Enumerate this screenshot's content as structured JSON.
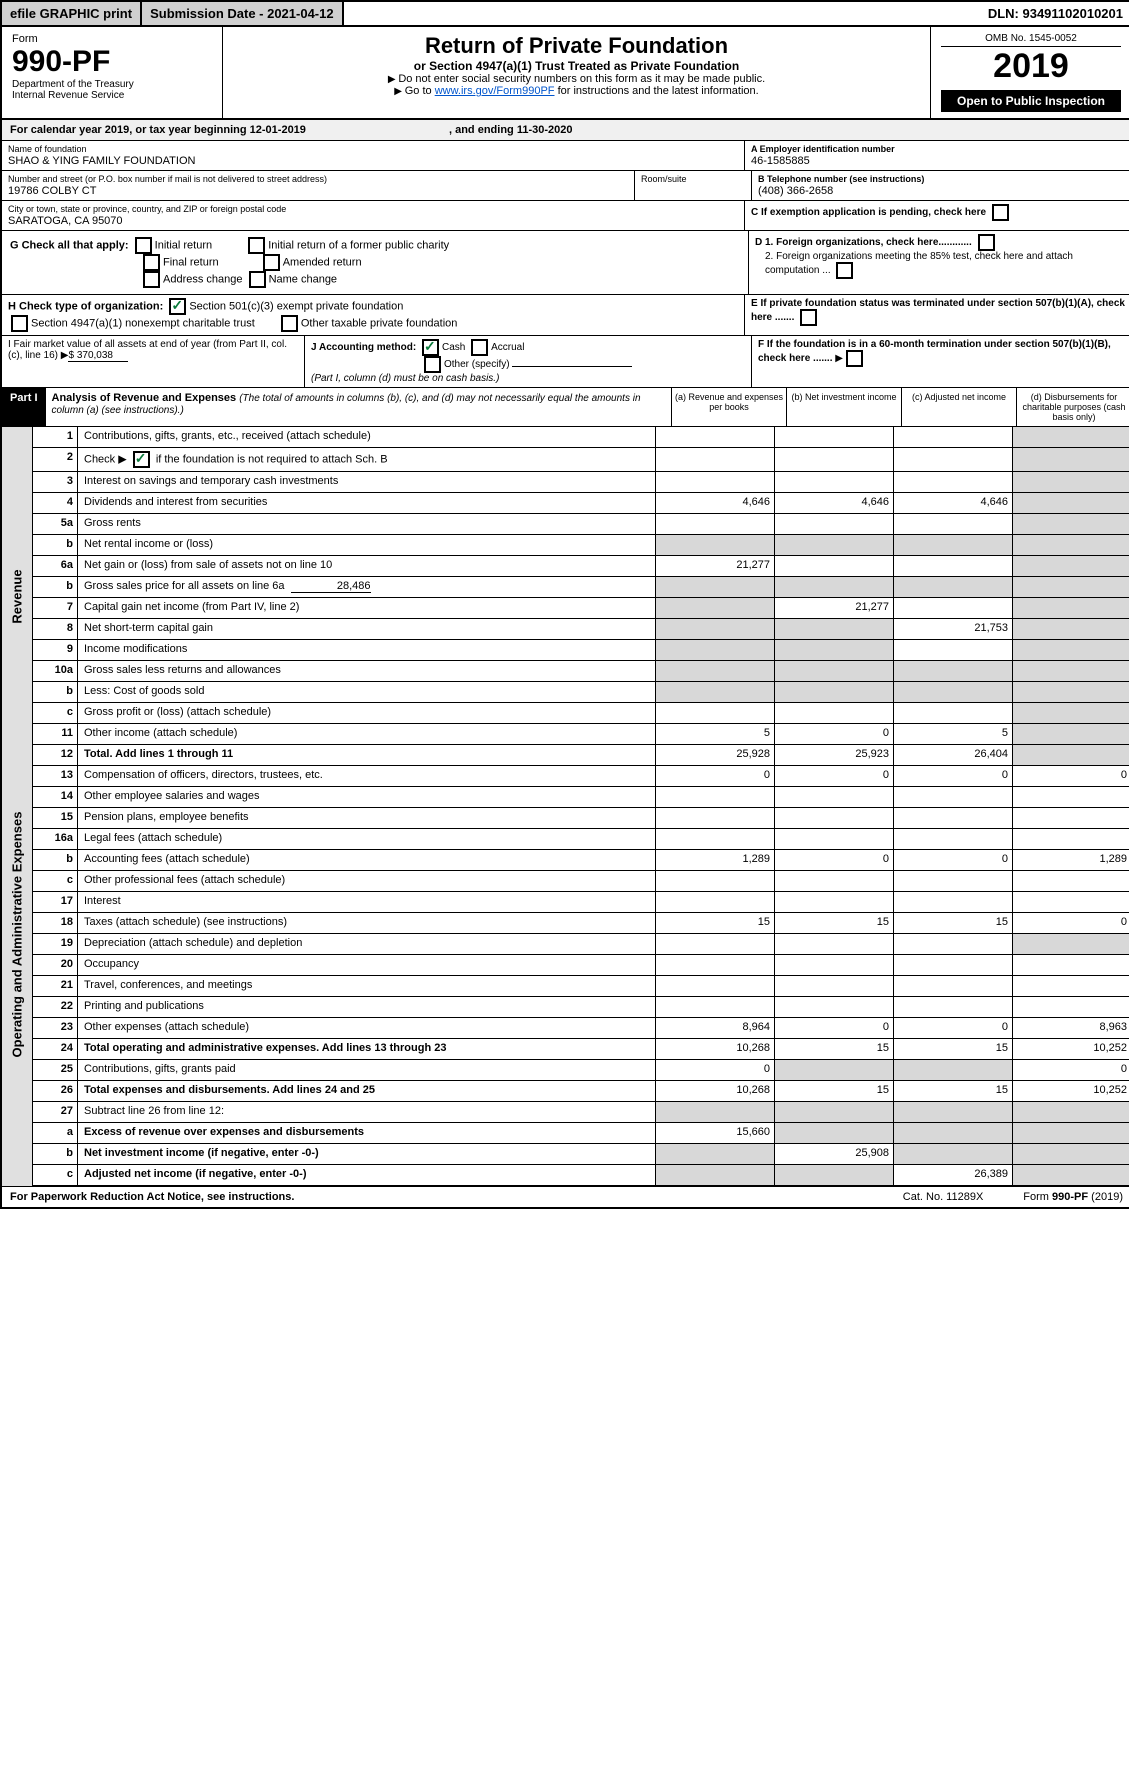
{
  "topbar": {
    "efile": "efile GRAPHIC print",
    "subdate_lbl": "Submission Date - 2021-04-12",
    "dln": "DLN: 93491102010201"
  },
  "header": {
    "form_word": "Form",
    "form_no": "990-PF",
    "dept": "Department of the Treasury",
    "irs": "Internal Revenue Service",
    "title": "Return of Private Foundation",
    "subtitle": "or Section 4947(a)(1) Trust Treated as Private Foundation",
    "instr1": "Do not enter social security numbers on this form as it may be made public.",
    "instr2_pre": "Go to ",
    "instr2_link": "www.irs.gov/Form990PF",
    "instr2_post": " for instructions and the latest information.",
    "omb": "OMB No. 1545-0052",
    "year": "2019",
    "inspect": "Open to Public Inspection"
  },
  "calyear": {
    "text": "For calendar year 2019, or tax year beginning 12-01-2019",
    "mid": ", and ending 11-30-2020"
  },
  "foundation": {
    "name_lbl": "Name of foundation",
    "name": "SHAO & YING FAMILY FOUNDATION",
    "addr_lbl": "Number and street (or P.O. box number if mail is not delivered to street address)",
    "addr": "19786 COLBY CT",
    "room_lbl": "Room/suite",
    "room": "",
    "city_lbl": "City or town, state or province, country, and ZIP or foreign postal code",
    "city": "SARATOGA, CA  95070",
    "ein_lbl": "A Employer identification number",
    "ein": "46-1585885",
    "tel_lbl": "B Telephone number (see instructions)",
    "tel": "(408) 366-2658",
    "c_lbl": "C If exemption application is pending, check here",
    "d1_lbl": "D 1. Foreign organizations, check here............",
    "d2_lbl": "2. Foreign organizations meeting the 85% test, check here and attach computation ...",
    "e_lbl": "E If private foundation status was terminated under section 507(b)(1)(A), check here .......",
    "f_lbl": "F If the foundation is in a 60-month termination under section 507(b)(1)(B), check here ......."
  },
  "checks": {
    "g_lbl": "G Check all that apply:",
    "init": "Initial return",
    "initfpc": "Initial return of a former public charity",
    "final": "Final return",
    "amend": "Amended return",
    "addrchg": "Address change",
    "namechg": "Name change",
    "h_lbl": "H Check type of organization:",
    "h1": "Section 501(c)(3) exempt private foundation",
    "h2": "Section 4947(a)(1) nonexempt charitable trust",
    "h3": "Other taxable private foundation",
    "i_lbl": "I Fair market value of all assets at end of year (from Part II, col. (c), line 16)",
    "i_val": "$  370,038",
    "j_lbl": "J Accounting method:",
    "cash": "Cash",
    "accrual": "Accrual",
    "other": "Other (specify)",
    "j_note": "(Part I, column (d) must be on cash basis.)"
  },
  "part1": {
    "label": "Part I",
    "title": "Analysis of Revenue and Expenses",
    "title_note": "(The total of amounts in columns (b), (c), and (d) may not necessarily equal the amounts in column (a) (see instructions).)",
    "col_a": "(a)   Revenue and expenses per books",
    "col_b": "(b)  Net investment income",
    "col_c": "(c)  Adjusted net income",
    "col_d": "(d)  Disbursements for charitable purposes (cash basis only)"
  },
  "sections": {
    "rev": "Revenue",
    "exp": "Operating and Administrative Expenses"
  },
  "lines": {
    "1": {
      "d": "Contributions, gifts, grants, etc., received (attach schedule)"
    },
    "2": {
      "d": "Check ▶        if the foundation is not required to attach Sch. B"
    },
    "3": {
      "d": "Interest on savings and temporary cash investments"
    },
    "4": {
      "d": "Dividends and interest from securities",
      "a": "4,646",
      "b": "4,646",
      "c": "4,646"
    },
    "5a": {
      "d": "Gross rents"
    },
    "5b": {
      "d": "Net rental income or (loss)"
    },
    "6a": {
      "d": "Net gain or (loss) from sale of assets not on line 10",
      "a": "21,277"
    },
    "6b": {
      "d": "Gross sales price for all assets on line 6a",
      "v": "28,486"
    },
    "7": {
      "d": "Capital gain net income (from Part IV, line 2)",
      "b": "21,277"
    },
    "8": {
      "d": "Net short-term capital gain",
      "c": "21,753"
    },
    "9": {
      "d": "Income modifications"
    },
    "10a": {
      "d": "Gross sales less returns and allowances"
    },
    "10b": {
      "d": "Less: Cost of goods sold"
    },
    "10c": {
      "d": "Gross profit or (loss) (attach schedule)"
    },
    "11": {
      "d": "Other income (attach schedule)",
      "a": "5",
      "b": "0",
      "c": "5"
    },
    "12": {
      "d": "Total. Add lines 1 through 11",
      "a": "25,928",
      "b": "25,923",
      "c": "26,404"
    },
    "13": {
      "d": "Compensation of officers, directors, trustees, etc.",
      "a": "0",
      "b": "0",
      "c": "0",
      "dd": "0"
    },
    "14": {
      "d": "Other employee salaries and wages"
    },
    "15": {
      "d": "Pension plans, employee benefits"
    },
    "16a": {
      "d": "Legal fees (attach schedule)"
    },
    "16b": {
      "d": "Accounting fees (attach schedule)",
      "a": "1,289",
      "b": "0",
      "c": "0",
      "dd": "1,289"
    },
    "16c": {
      "d": "Other professional fees (attach schedule)"
    },
    "17": {
      "d": "Interest"
    },
    "18": {
      "d": "Taxes (attach schedule) (see instructions)",
      "a": "15",
      "b": "15",
      "c": "15",
      "dd": "0"
    },
    "19": {
      "d": "Depreciation (attach schedule) and depletion"
    },
    "20": {
      "d": "Occupancy"
    },
    "21": {
      "d": "Travel, conferences, and meetings"
    },
    "22": {
      "d": "Printing and publications"
    },
    "23": {
      "d": "Other expenses (attach schedule)",
      "a": "8,964",
      "b": "0",
      "c": "0",
      "dd": "8,963"
    },
    "24": {
      "d": "Total operating and administrative expenses. Add lines 13 through 23",
      "a": "10,268",
      "b": "15",
      "c": "15",
      "dd": "10,252"
    },
    "25": {
      "d": "Contributions, gifts, grants paid",
      "a": "0",
      "dd": "0"
    },
    "26": {
      "d": "Total expenses and disbursements. Add lines 24 and 25",
      "a": "10,268",
      "b": "15",
      "c": "15",
      "dd": "10,252"
    },
    "27": {
      "d": "Subtract line 26 from line 12:"
    },
    "27a": {
      "d": "Excess of revenue over expenses and disbursements",
      "a": "15,660"
    },
    "27b": {
      "d": "Net investment income (if negative, enter -0-)",
      "b": "25,908"
    },
    "27c": {
      "d": "Adjusted net income (if negative, enter -0-)",
      "c": "26,389"
    }
  },
  "footer": {
    "pra": "For Paperwork Reduction Act Notice, see instructions.",
    "cat": "Cat. No. 11289X",
    "form": "Form 990-PF (2019)"
  }
}
